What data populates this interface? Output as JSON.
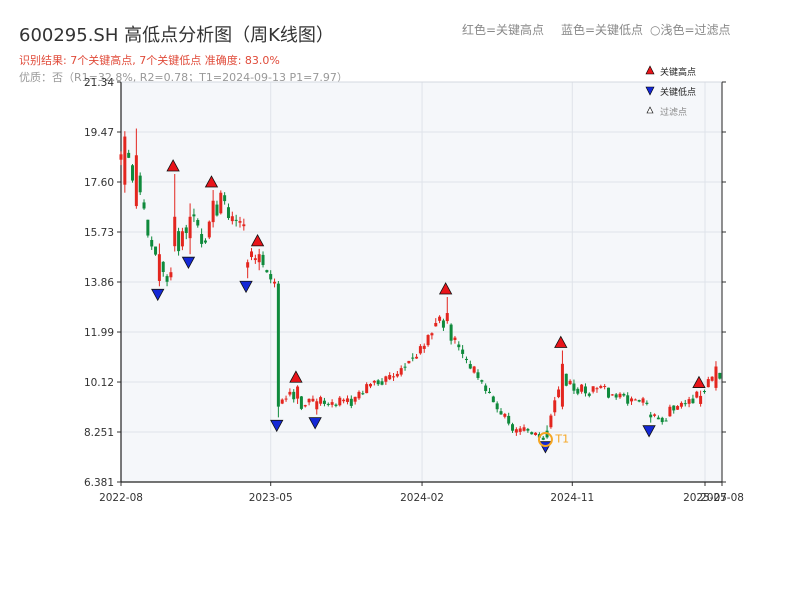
{
  "header": {
    "title": "600295.SH 高低点分析图（周K线图）",
    "result": "识别结果: 7个关键高点, 7个关键低点   准确度: 83.0%",
    "quality": "优质：否（R1=32.8%, R2=0.78；T1=2024-09-13 P1=7.97）"
  },
  "top_legend": {
    "red_label": "红色=关键高点",
    "blue_label": "蓝色=关键低点",
    "filter_label": "浅色=过滤点"
  },
  "side_legend": {
    "high": "关键高点",
    "low": "关键低点",
    "filter": "过滤点"
  },
  "colors": {
    "up": "#e3261f",
    "down": "#0f8a3c",
    "high_marker": "#e8141a",
    "low_marker": "#1428d6",
    "t1_ring": "#f5a623",
    "plot_bg": "#f5f7fa",
    "grid": "#dfe3ea"
  },
  "chart_data": {
    "type": "candlestick",
    "x_tick_labels": [
      "2022-08",
      "2023-05",
      "2024-02",
      "2024-11",
      "2025-07",
      "2025-08"
    ],
    "x_ticks": [
      "2022-08-01",
      "2023-05-01",
      "2024-02-01",
      "2024-11-01",
      "2025-07-01",
      "2025-08-01"
    ],
    "x_range": [
      "2022-08-01",
      "2025-08-01"
    ],
    "y_tick_labels": [
      "6.381",
      "8.251",
      "10.12",
      "11.99",
      "13.86",
      "15.73",
      "17.60",
      "19.47",
      "21.34"
    ],
    "y_ticks": [
      6.381,
      8.251,
      10.12,
      11.99,
      13.86,
      15.73,
      17.6,
      19.47,
      21.34
    ],
    "ylim": [
      6.381,
      21.34
    ],
    "grid": true,
    "legend_position": "top-right",
    "anchors": [
      [
        "2022-08-01",
        18.5
      ],
      [
        "2022-08-20",
        18.0
      ],
      [
        "2022-09-10",
        16.5
      ],
      [
        "2022-10-01",
        15.2
      ],
      [
        "2022-10-25",
        14.0
      ],
      [
        "2022-11-20",
        15.6
      ],
      [
        "2022-12-10",
        16.6
      ],
      [
        "2022-12-25",
        15.2
      ],
      [
        "2023-01-15",
        16.0
      ],
      [
        "2023-02-01",
        16.9
      ],
      [
        "2023-02-20",
        16.3
      ],
      [
        "2023-03-15",
        15.6
      ],
      [
        "2023-04-01",
        14.4
      ],
      [
        "2023-04-15",
        14.8
      ],
      [
        "2023-05-05",
        13.6
      ],
      [
        "2023-05-12",
        13.6
      ],
      [
        "2023-05-15",
        9.2
      ],
      [
        "2023-06-05",
        9.9
      ],
      [
        "2023-06-25",
        9.3
      ],
      [
        "2023-07-20",
        9.4
      ],
      [
        "2023-09-01",
        9.3
      ],
      [
        "2023-09-25",
        9.4
      ],
      [
        "2023-11-01",
        10.0
      ],
      [
        "2023-12-10",
        10.2
      ],
      [
        "2024-01-10",
        10.9
      ],
      [
        "2024-02-10",
        11.5
      ],
      [
        "2024-03-01",
        12.5
      ],
      [
        "2024-03-20",
        12.0
      ],
      [
        "2024-04-10",
        11.3
      ],
      [
        "2024-05-15",
        10.2
      ],
      [
        "2024-06-15",
        9.2
      ],
      [
        "2024-07-20",
        8.3
      ],
      [
        "2024-09-13",
        8.1
      ],
      [
        "2024-10-01",
        9.3
      ],
      [
        "2024-10-15",
        10.2
      ],
      [
        "2024-11-15",
        9.8
      ],
      [
        "2025-01-01",
        9.8
      ],
      [
        "2025-02-15",
        9.5
      ],
      [
        "2025-03-10",
        9.3
      ],
      [
        "2025-04-10",
        8.7
      ],
      [
        "2025-05-10",
        9.2
      ],
      [
        "2025-06-10",
        9.5
      ],
      [
        "2025-07-01",
        10.0
      ],
      [
        "2025-07-25",
        10.3
      ],
      [
        "2025-08-01",
        10.1
      ]
    ],
    "spikes": [
      {
        "date": "2022-08-05",
        "open": 17.5,
        "close": 19.3,
        "high": 19.5,
        "low": 17.2
      },
      {
        "date": "2022-08-26",
        "open": 16.7,
        "close": 18.6,
        "high": 19.6,
        "low": 16.6
      },
      {
        "date": "2022-10-07",
        "open": 13.9,
        "close": 14.9,
        "high": 15.3,
        "low": 13.7
      },
      {
        "date": "2022-11-04",
        "open": 15.2,
        "close": 16.3,
        "high": 17.9,
        "low": 15.0
      },
      {
        "date": "2022-12-02",
        "open": 15.5,
        "close": 16.3,
        "high": 16.8,
        "low": 14.9
      },
      {
        "date": "2023-01-13",
        "open": 16.1,
        "close": 16.9,
        "high": 17.3,
        "low": 15.9
      },
      {
        "date": "2023-03-17",
        "open": 14.4,
        "close": 14.6,
        "high": 14.7,
        "low": 14.0
      },
      {
        "date": "2023-04-07",
        "open": 14.6,
        "close": 14.9,
        "high": 15.1,
        "low": 14.3
      },
      {
        "date": "2023-05-12",
        "open": 13.8,
        "close": 9.2,
        "high": 13.9,
        "low": 8.8
      },
      {
        "date": "2023-06-16",
        "open": 9.5,
        "close": 9.95,
        "high": 10.0,
        "low": 9.3
      },
      {
        "date": "2023-07-21",
        "open": 9.1,
        "close": 9.4,
        "high": 9.5,
        "low": 8.9
      },
      {
        "date": "2024-03-15",
        "open": 12.4,
        "close": 12.7,
        "high": 13.3,
        "low": 12.3
      },
      {
        "date": "2024-09-13",
        "open": 8.3,
        "close": 8.05,
        "high": 8.5,
        "low": 8.0
      },
      {
        "date": "2024-10-11",
        "open": 9.2,
        "close": 10.8,
        "high": 11.3,
        "low": 9.1
      },
      {
        "date": "2025-03-21",
        "open": 8.9,
        "close": 8.8,
        "high": 9.0,
        "low": 8.6
      },
      {
        "date": "2025-06-20",
        "open": 9.3,
        "close": 9.6,
        "high": 9.8,
        "low": 9.2
      },
      {
        "date": "2025-07-18",
        "open": 9.9,
        "close": 10.7,
        "high": 10.9,
        "low": 9.8
      }
    ],
    "key_highs": [
      {
        "date": "2022-11-04",
        "price": 17.9
      },
      {
        "date": "2023-01-13",
        "price": 17.3
      },
      {
        "date": "2023-04-07",
        "price": 15.1
      },
      {
        "date": "2023-06-16",
        "price": 10.0
      },
      {
        "date": "2024-03-15",
        "price": 13.3
      },
      {
        "date": "2024-10-11",
        "price": 11.3
      },
      {
        "date": "2025-06-20",
        "price": 9.8
      }
    ],
    "key_lows": [
      {
        "date": "2022-10-07",
        "price": 13.7
      },
      {
        "date": "2022-12-02",
        "price": 14.9
      },
      {
        "date": "2023-03-17",
        "price": 14.0
      },
      {
        "date": "2023-05-12",
        "price": 8.8
      },
      {
        "date": "2023-07-21",
        "price": 8.9
      },
      {
        "date": "2024-09-13",
        "price": 8.0
      },
      {
        "date": "2025-03-21",
        "price": 8.6
      }
    ],
    "t1": {
      "date": "2024-09-13",
      "price": 7.97,
      "label": "T1"
    }
  }
}
